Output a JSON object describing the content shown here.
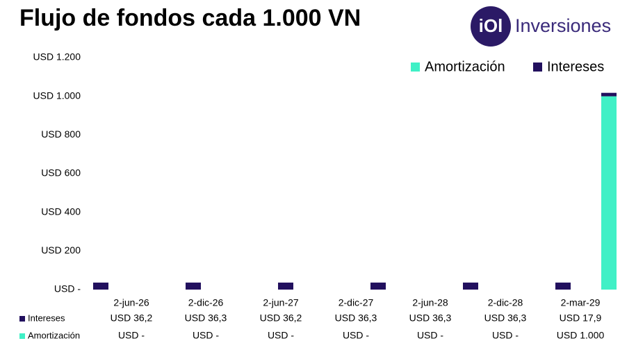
{
  "logo": {
    "mark": "iOl",
    "text": "Inversiones"
  },
  "chart_data": {
    "type": "bar",
    "stacked": true,
    "title": "Flujo de fondos cada 1.000 VN",
    "categories": [
      "2-jun-26",
      "2-dic-26",
      "2-jun-27",
      "2-dic-27",
      "2-jun-28",
      "2-dic-28",
      "2-mar-29"
    ],
    "series": [
      {
        "name": "Amortización",
        "color": "#40f0c6",
        "values": [
          0,
          0,
          0,
          0,
          0,
          0,
          1000
        ],
        "value_labels": [
          "USD -",
          "USD -",
          "USD -",
          "USD -",
          "USD -",
          "USD -",
          "USD 1.000"
        ]
      },
      {
        "name": "Intereses",
        "color": "#22105e",
        "values": [
          36.2,
          36.3,
          36.2,
          36.3,
          36.3,
          36.3,
          17.9
        ],
        "value_labels": [
          "USD 36,2",
          "USD 36,3",
          "USD 36,2",
          "USD 36,3",
          "USD 36,3",
          "USD 36,3",
          "USD 17,9"
        ]
      }
    ],
    "ylim": [
      0,
      1200
    ],
    "yticks": [
      {
        "value": 0,
        "label": "USD -"
      },
      {
        "value": 200,
        "label": "USD 200"
      },
      {
        "value": 400,
        "label": "USD 400"
      },
      {
        "value": 600,
        "label": "USD 600"
      },
      {
        "value": 800,
        "label": "USD 800"
      },
      {
        "value": 1000,
        "label": "USD 1.000"
      },
      {
        "value": 1200,
        "label": "USD 1.200"
      }
    ],
    "legend": "top-right"
  }
}
